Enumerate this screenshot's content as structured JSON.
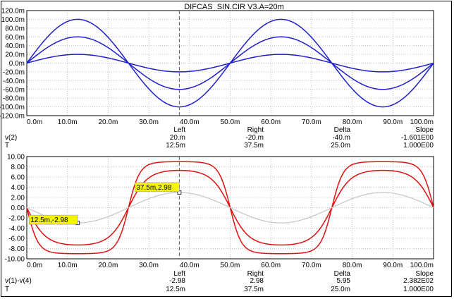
{
  "title": "DIFCAS_SIN.CIR V3.A=20m",
  "colors": {
    "blue": "#1f1fc8",
    "red": "#e01010",
    "gray": "#c4c4c4",
    "cursor_box": "#f5f500",
    "grid": "#c0c0c0"
  },
  "chart_data": [
    {
      "type": "line",
      "x_ticks": [
        "0.0m",
        "10.0m",
        "20.0m",
        "30.0m",
        "40.0m",
        "50.0m",
        "60.0m",
        "70.0m",
        "80.0m",
        "90.0m",
        "100.0m"
      ],
      "y_ticks": [
        "120.0m",
        "100.0m",
        "80.0m",
        "60.0m",
        "40.0m",
        "20.0m",
        "0.0m",
        "-20.0m",
        "-40.0m",
        "-60.0m",
        "-80.0m",
        "-100.0m",
        "-120.0m"
      ],
      "xlim": [
        0,
        0.1
      ],
      "ylim": [
        -0.12,
        0.12
      ],
      "series": [
        {
          "color": "blue",
          "amplitude": 0.1,
          "period": 0.05
        },
        {
          "color": "blue",
          "amplitude": 0.06,
          "period": 0.05
        },
        {
          "color": "blue",
          "amplitude": 0.02,
          "period": 0.05
        }
      ],
      "cursor_x": 0.0375,
      "readout": {
        "headers": [
          "Left",
          "Right",
          "Delta",
          "Slope"
        ],
        "row1": {
          "label": "v(2)",
          "values": [
            "20.m",
            "-20.m",
            "-40.m",
            "-1.601E00"
          ]
        },
        "row2": {
          "label": "T",
          "values": [
            "12.5m",
            "37.5m",
            "25.0m",
            "1.000E00"
          ]
        }
      }
    },
    {
      "type": "line",
      "x_ticks": [
        "0.0m",
        "10.0m",
        "20.0m",
        "30.0m",
        "40.0m",
        "50.0m",
        "60.0m",
        "70.0m",
        "80.0m",
        "90.0m",
        "100.0m"
      ],
      "y_ticks": [
        "10.00",
        "8.00",
        "6.00",
        "4.00",
        "2.00",
        "0.00",
        "-2.00",
        "-4.00",
        "-6.00",
        "-8.00",
        "-10.00"
      ],
      "xlim": [
        0,
        0.1
      ],
      "ylim": [
        -10,
        10
      ],
      "series": [
        {
          "color": "red",
          "kind": "sat",
          "amp": 9.0,
          "gain": 2.8
        },
        {
          "color": "red",
          "kind": "sat",
          "amp": 7.3,
          "gain": 1.6
        },
        {
          "color": "gray",
          "kind": "sin",
          "amp": 2.98
        }
      ],
      "cursor_x": 0.0375,
      "cursor_labels": [
        {
          "text": "37.5m,2.98",
          "x": 0.0375,
          "y": 2.98
        },
        {
          "text": "12.5m,-2.98",
          "x": 0.0125,
          "y": -2.98
        }
      ],
      "readout": {
        "headers": [
          "Left",
          "Right",
          "Delta",
          "Slope"
        ],
        "row1": {
          "label": "v(1)-v(4)",
          "values": [
            "-2.98",
            "2.98",
            "5.95",
            "2.382E02"
          ]
        },
        "row2": {
          "label": "T",
          "values": [
            "12.5m",
            "37.5m",
            "25.0m",
            "1.000E00"
          ]
        }
      }
    }
  ]
}
